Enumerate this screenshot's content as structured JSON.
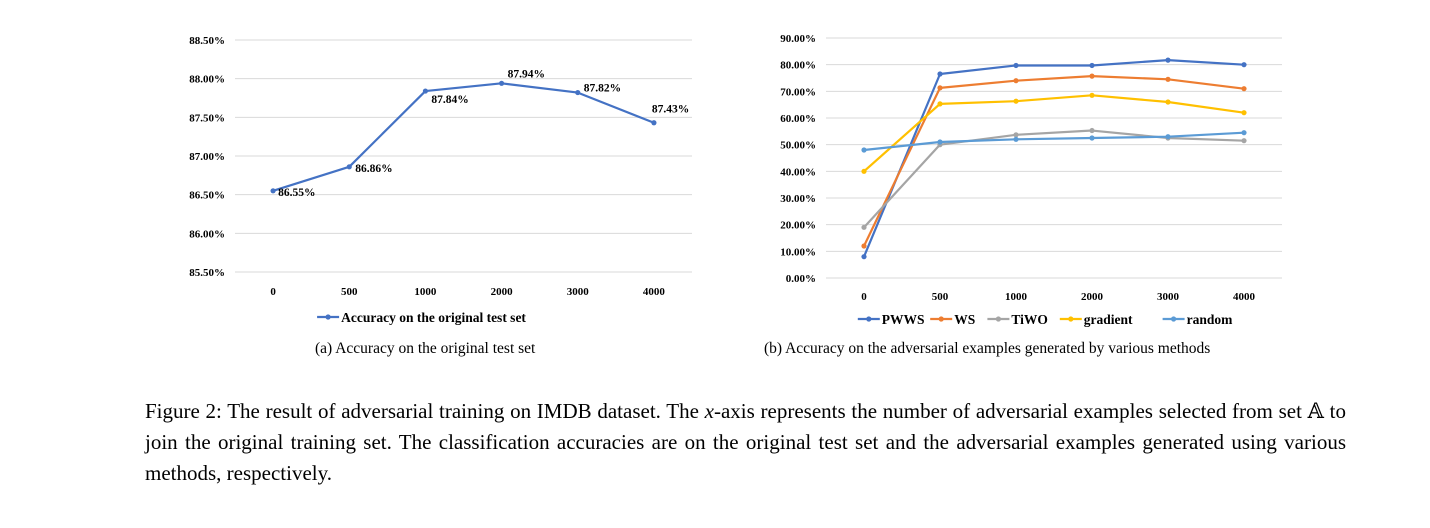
{
  "chart_data": [
    {
      "type": "line",
      "categories": [
        "0",
        "500",
        "1000",
        "2000",
        "3000",
        "4000"
      ],
      "series": [
        {
          "name": "Accuracy on the original test set",
          "color": "#4472C4",
          "values": [
            86.55,
            86.86,
            87.84,
            87.94,
            87.82,
            87.43
          ],
          "data_labels": [
            "86.55%",
            "86.86%",
            "87.84%",
            "87.94%",
            "87.82%",
            "87.43%"
          ]
        }
      ],
      "ylim": [
        85.5,
        88.5
      ],
      "yticks": [
        "85.50%",
        "86.00%",
        "86.50%",
        "87.00%",
        "87.50%",
        "88.00%",
        "88.50%"
      ],
      "grid": true,
      "legend": "bottom"
    },
    {
      "type": "line",
      "categories": [
        "0",
        "500",
        "1000",
        "2000",
        "3000",
        "4000"
      ],
      "series": [
        {
          "name": "PWWS",
          "color": "#4472C4",
          "values": [
            8.0,
            76.5,
            79.7,
            79.7,
            81.7,
            80.0
          ]
        },
        {
          "name": "WS",
          "color": "#ED7D31",
          "values": [
            12.0,
            71.3,
            74.0,
            75.7,
            74.5,
            71.0
          ]
        },
        {
          "name": "TiWO",
          "color": "#A5A5A5",
          "values": [
            19.0,
            50.0,
            53.7,
            55.3,
            52.5,
            51.5
          ]
        },
        {
          "name": "gradient",
          "color": "#FFC000",
          "values": [
            40.0,
            65.3,
            66.3,
            68.5,
            66.0,
            62.0
          ]
        },
        {
          "name": "random",
          "color": "#5B9BD5",
          "values": [
            48.0,
            51.0,
            52.0,
            52.5,
            53.0,
            54.5
          ]
        }
      ],
      "ylim": [
        0,
        90
      ],
      "yticks": [
        "0.00%",
        "10.00%",
        "20.00%",
        "30.00%",
        "40.00%",
        "50.00%",
        "60.00%",
        "70.00%",
        "80.00%",
        "90.00%"
      ],
      "grid": true,
      "legend": "bottom"
    }
  ],
  "subcaption_a": "(a) Accuracy on the original test set",
  "subcaption_b": "(b) Accuracy on the adversarial examples generated by various methods",
  "caption": {
    "part1": "Figure 2: The result of adversarial training on IMDB dataset. The ",
    "var": "x",
    "part2": "-axis represents the number of adversarial examples selected from set 𝔸 to join the original training set. The classification accuracies are on the original test set and the adversarial examples generated using various methods, respectively."
  }
}
